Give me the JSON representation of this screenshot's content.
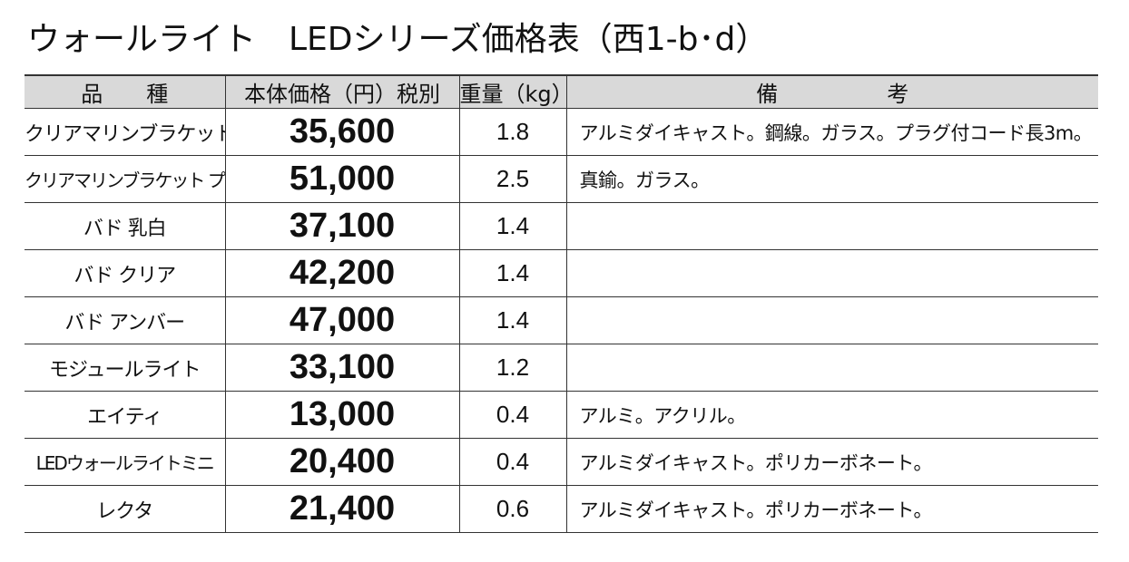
{
  "title": "ウォールライト　LEDシリーズ価格表（西1-b･d）",
  "headers": {
    "name": "品　　種",
    "price": "本体価格（円）税別",
    "weight": "重量（kg）",
    "notes": "備　　　　　考"
  },
  "rows": [
    {
      "name": "クリアマリンブラケット",
      "price": "35,600",
      "weight": "1.8",
      "notes": "アルミダイキャスト。鋼線。ガラス。プラグ付コード長3m。"
    },
    {
      "name": "クリアマリンブラケット プラス",
      "price": "51,000",
      "weight": "2.5",
      "notes": "真鍮。ガラス。"
    },
    {
      "name": "バド 乳白",
      "price": "37,100",
      "weight": "1.4",
      "notes": ""
    },
    {
      "name": "バド クリア",
      "price": "42,200",
      "weight": "1.4",
      "notes": ""
    },
    {
      "name": "バド アンバー",
      "price": "47,000",
      "weight": "1.4",
      "notes": ""
    },
    {
      "name": "モジュールライト",
      "price": "33,100",
      "weight": "1.2",
      "notes": ""
    },
    {
      "name": "エイティ",
      "price": "13,000",
      "weight": "0.4",
      "notes": "アルミ。アクリル。"
    },
    {
      "name": "LEDウォールライトミニ",
      "price": "20,400",
      "weight": "0.4",
      "notes": "アルミダイキャスト。ポリカーボネート。"
    },
    {
      "name": "レクタ",
      "price": "21,400",
      "weight": "0.6",
      "notes": "アルミダイキャスト。ポリカーボネート。"
    }
  ]
}
